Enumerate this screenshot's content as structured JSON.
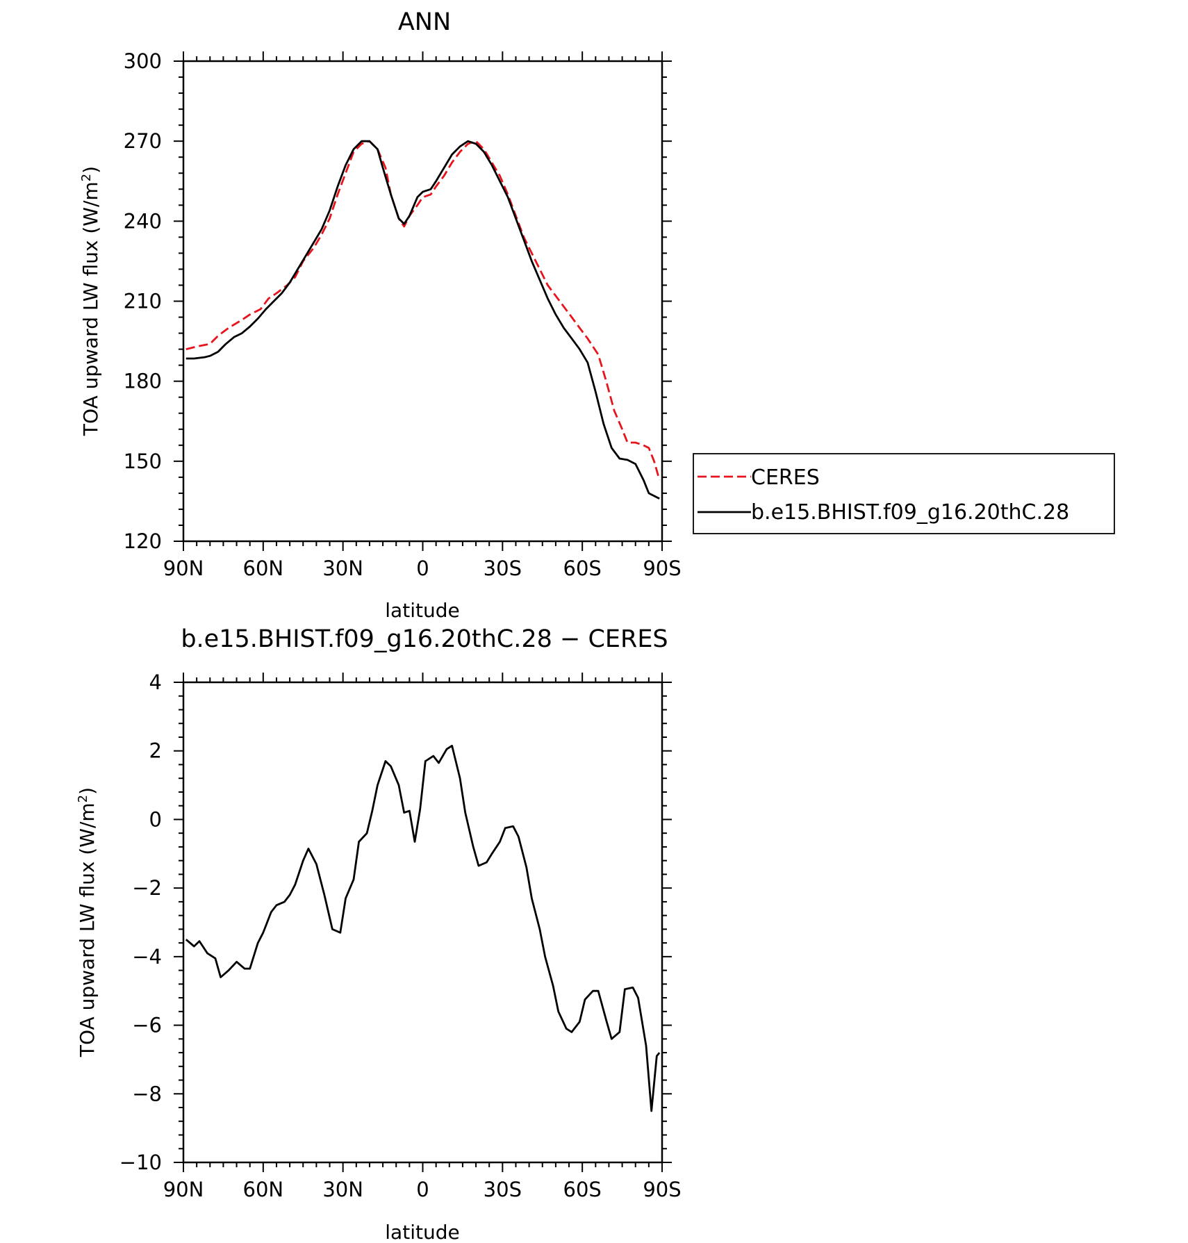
{
  "chart_data": [
    {
      "type": "line",
      "title": "ANN",
      "xlabel": "latitude",
      "ylabel": "TOA upward LW flux (W/m",
      "ylabel_sup": "2",
      "ylabel_tail": ")",
      "xlim": [
        90,
        -90
      ],
      "ylim": [
        120,
        300
      ],
      "x_tick_values": [
        90,
        60,
        30,
        0,
        -30,
        -60,
        -90
      ],
      "x_tick_labels": [
        "90N",
        "60N",
        "30N",
        "0",
        "30S",
        "60S",
        "90S"
      ],
      "y_tick_values": [
        120,
        150,
        180,
        210,
        240,
        270,
        300
      ],
      "y_tick_labels": [
        "120",
        "150",
        "180",
        "210",
        "240",
        "270",
        "300"
      ],
      "legend_position": "right",
      "series": [
        {
          "name": "CERES",
          "color": "#e8141c",
          "dash": "dashed",
          "x": [
            89,
            85,
            80,
            77,
            73,
            68,
            65,
            61,
            58,
            55,
            51,
            48,
            45,
            41,
            38,
            35,
            32,
            29,
            26,
            23,
            20,
            17,
            14,
            12,
            9,
            7,
            5,
            2,
            0,
            -3,
            -5,
            -8,
            -11,
            -14,
            -17,
            -20,
            -23,
            -26,
            -29,
            -32,
            -35,
            -38,
            -41,
            -44,
            -47,
            -50,
            -53,
            -56,
            -59,
            -62,
            -66,
            -69,
            -72,
            -75,
            -77,
            -80,
            -83,
            -85,
            -87,
            -89
          ],
          "y": [
            192,
            193,
            194,
            197,
            200,
            203,
            205,
            207,
            211,
            213,
            216,
            219,
            225,
            230,
            235,
            241,
            250,
            258,
            266,
            269,
            270,
            267,
            260,
            250,
            241,
            238,
            242,
            246,
            249,
            250,
            253,
            257,
            262,
            266,
            269,
            270,
            267,
            262,
            257,
            250,
            242,
            234,
            228,
            222,
            216,
            212,
            208,
            204,
            200,
            196,
            190,
            180,
            169,
            162,
            157,
            157,
            156,
            155,
            150,
            143
          ]
        },
        {
          "name": "b.e15.BHIST.f09_g16.20thC.28",
          "color": "#000000",
          "dash": "solid",
          "x": [
            89,
            86,
            82,
            80,
            77,
            74,
            71,
            68,
            65,
            62,
            59,
            56,
            53,
            50,
            47,
            44,
            41,
            38,
            35,
            32,
            29,
            26,
            23,
            20,
            17,
            15,
            12,
            9,
            7,
            5,
            2,
            0,
            -3,
            -5,
            -8,
            -11,
            -14,
            -17,
            -20,
            -23,
            -26,
            -29,
            -32,
            -35,
            -38,
            -41,
            -44,
            -47,
            -50,
            -53,
            -56,
            -59,
            -62,
            -65,
            -68,
            -71,
            -74,
            -77,
            -80,
            -83,
            -85,
            -87,
            -89
          ],
          "y": [
            188.5,
            188.5,
            189,
            189.5,
            191,
            194,
            196.5,
            198,
            200.5,
            203.5,
            207,
            210,
            213,
            217,
            222,
            227,
            232,
            237,
            244,
            253,
            261,
            267,
            270,
            270,
            267,
            260,
            250,
            241,
            239,
            242,
            249,
            251,
            252,
            255,
            260,
            265,
            268,
            270,
            269,
            266,
            261,
            255,
            249,
            241,
            233,
            225,
            218,
            211,
            205,
            200,
            196,
            192,
            187,
            176,
            164,
            155,
            151,
            150.5,
            149,
            143,
            138,
            137,
            136
          ]
        }
      ]
    },
    {
      "type": "line",
      "title": "b.e15.BHIST.f09_g16.20thC.28 − CERES",
      "xlabel": "latitude",
      "ylabel": "TOA upward LW flux (W/m",
      "ylabel_sup": "2",
      "ylabel_tail": ")",
      "xlim": [
        90,
        -90
      ],
      "ylim": [
        -10,
        4
      ],
      "x_tick_values": [
        90,
        60,
        30,
        0,
        -30,
        -60,
        -90
      ],
      "x_tick_labels": [
        "90N",
        "60N",
        "30N",
        "0",
        "30S",
        "60S",
        "90S"
      ],
      "y_tick_values": [
        4,
        2,
        0,
        -2,
        -4,
        -6,
        -8,
        -10
      ],
      "y_tick_labels": [
        "4",
        "2",
        "0",
        "−2",
        "−4",
        "−6",
        "−8",
        "−10"
      ],
      "series": [
        {
          "name": "",
          "color": "#000000",
          "dash": "solid",
          "x": [
            89,
            86,
            84,
            81,
            78,
            76,
            73,
            70,
            67,
            65,
            62,
            60,
            57,
            55,
            52,
            50,
            48,
            45,
            43,
            40,
            37,
            34,
            31,
            29,
            26,
            24,
            21,
            19,
            17,
            14,
            12,
            9,
            7,
            5,
            3,
            1,
            -1,
            -4,
            -6,
            -9,
            -11,
            -14,
            -16,
            -19,
            -21,
            -24,
            -26,
            -29,
            -31,
            -34,
            -36,
            -39,
            -41,
            -44,
            -46,
            -49,
            -51,
            -54,
            -56,
            -59,
            -61,
            -64,
            -66,
            -69,
            -71,
            -74,
            -76,
            -79,
            -81,
            -84,
            -86,
            -88,
            -89
          ],
          "y": [
            -3.5,
            -3.7,
            -3.55,
            -3.9,
            -4.05,
            -4.6,
            -4.4,
            -4.15,
            -4.35,
            -4.35,
            -3.6,
            -3.3,
            -2.7,
            -2.5,
            -2.4,
            -2.2,
            -1.9,
            -1.2,
            -0.85,
            -1.3,
            -2.2,
            -3.2,
            -3.3,
            -2.3,
            -1.75,
            -0.65,
            -0.4,
            0.25,
            1.0,
            1.7,
            1.55,
            1.0,
            0.2,
            0.25,
            -0.65,
            0.3,
            1.7,
            1.85,
            1.65,
            2.05,
            2.15,
            1.2,
            0.2,
            -0.8,
            -1.35,
            -1.25,
            -1.0,
            -0.65,
            -0.25,
            -0.2,
            -0.5,
            -1.4,
            -2.3,
            -3.2,
            -4.0,
            -4.85,
            -5.6,
            -6.1,
            -6.2,
            -5.9,
            -5.25,
            -5.0,
            -5.0,
            -5.85,
            -6.4,
            -6.2,
            -4.95,
            -4.9,
            -5.2,
            -6.6,
            -8.5,
            -6.9,
            -6.8
          ]
        }
      ]
    }
  ]
}
